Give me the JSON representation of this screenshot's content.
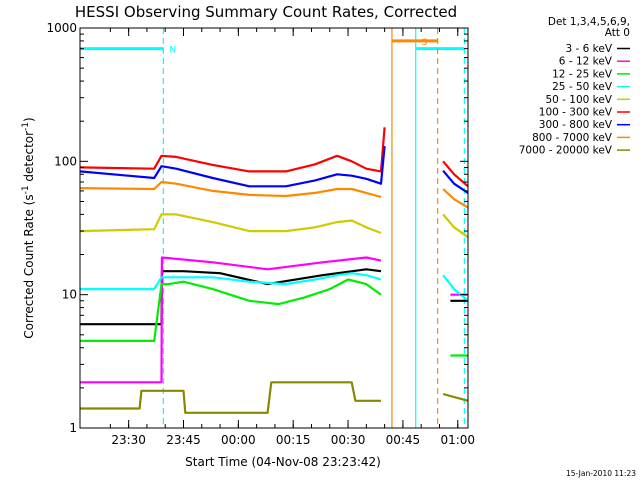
{
  "chart_data": {
    "type": "line",
    "title": "HESSI Observing Summary Count Rates, Corrected",
    "ylabel": "Corrected Count Rate (s",
    "ylabel_sup": "-1",
    "ylabel_tail": " detector",
    "ylabel_sup2": "-1",
    "ylabel_close": ")",
    "xlabel": "Start Time (04-Nov-08 23:23:42)",
    "yscale": "log",
    "ylim": [
      1,
      1000
    ],
    "xlim_minutes": [
      -6.3,
      99.8
    ],
    "x_reference_time": "23:23:42",
    "x_ticks": [
      {
        "t": 7,
        "label": "23:30"
      },
      {
        "t": 22,
        "label": "23:45"
      },
      {
        "t": 37,
        "label": "00:00"
      },
      {
        "t": 52,
        "label": "00:15"
      },
      {
        "t": 67,
        "label": "00:30"
      },
      {
        "t": 82,
        "label": "00:45"
      },
      {
        "t": 97,
        "label": "01:00"
      }
    ],
    "y_ticks": [
      {
        "v": 1,
        "label": "1"
      },
      {
        "v": 10,
        "label": "10"
      },
      {
        "v": 100,
        "label": "100"
      },
      {
        "v": 1000,
        "label": "1000"
      }
    ],
    "legend": {
      "header1": "Det 1,3,4,5,6,9,",
      "header2": "Att 0",
      "placement": "right"
    },
    "series": [
      {
        "name": "3 - 6 keV",
        "color": "#000000",
        "x": [
          -6.3,
          10,
          16,
          16.1,
          22,
          32,
          45,
          60,
          72,
          76,
          91,
          95,
          99.8
        ],
        "y": [
          6,
          6,
          6,
          15,
          15,
          14.5,
          12,
          14,
          15.5,
          15,
          null,
          9,
          9
        ]
      },
      {
        "name": "6 - 12 keV",
        "color": "#ff00ff",
        "x": [
          -6.3,
          16,
          16.1,
          30,
          45,
          60,
          72,
          76,
          91,
          95,
          99.8
        ],
        "y": [
          2.2,
          2.2,
          19,
          17.5,
          15.5,
          17.5,
          19,
          18,
          null,
          10,
          10
        ]
      },
      {
        "name": "12 - 25 keV",
        "color": "#00ee00",
        "x": [
          -6.3,
          14,
          16,
          18,
          22,
          30,
          40,
          48,
          55,
          62,
          67,
          72,
          76,
          91,
          95,
          99.8
        ],
        "y": [
          4.5,
          4.5,
          12,
          12,
          12.5,
          11,
          9,
          8.5,
          9.5,
          11,
          13,
          12,
          10,
          null,
          3.5,
          3.5
        ]
      },
      {
        "name": "25 - 50 keV",
        "color": "#00ffff",
        "x": [
          -6.3,
          14,
          16,
          20,
          30,
          40,
          50,
          58,
          64,
          68,
          72,
          76,
          91,
          93,
          96,
          99.8
        ],
        "y": [
          11,
          11,
          13.5,
          13.5,
          13.5,
          12.5,
          12,
          13,
          14,
          14.5,
          14,
          13,
          null,
          14,
          11,
          9
        ]
      },
      {
        "name": "50 - 100 keV",
        "color": "#cccc00",
        "x": [
          -6.3,
          14,
          16,
          20,
          30,
          40,
          50,
          58,
          64,
          68,
          72,
          76,
          91,
          93,
          96,
          99.8
        ],
        "y": [
          30,
          31,
          40,
          40,
          35,
          30,
          30,
          32,
          35,
          36,
          32,
          29,
          null,
          40,
          32,
          27
        ]
      },
      {
        "name": "100 - 300 keV",
        "color": "#ff0000",
        "x": [
          -6.3,
          14,
          16,
          20,
          30,
          40,
          50,
          58,
          64,
          68,
          72,
          76,
          77,
          91,
          93,
          96,
          99.8
        ],
        "y": [
          90,
          88,
          110,
          108,
          94,
          84,
          84,
          95,
          110,
          100,
          88,
          84,
          180,
          null,
          100,
          80,
          65
        ]
      },
      {
        "name": "300 - 800 keV",
        "color": "#0000ff",
        "x": [
          -6.3,
          14,
          16,
          20,
          30,
          40,
          50,
          58,
          64,
          68,
          72,
          76,
          77,
          91,
          93,
          96,
          99.8
        ],
        "y": [
          84,
          75,
          92,
          88,
          75,
          65,
          65,
          72,
          80,
          78,
          74,
          68,
          130,
          null,
          85,
          68,
          58
        ]
      },
      {
        "name": "800 - 7000 keV",
        "color": "#ff8800",
        "x": [
          -6.3,
          14,
          16,
          20,
          30,
          40,
          50,
          58,
          64,
          68,
          72,
          76,
          91,
          93,
          96,
          99.8
        ],
        "y": [
          63,
          62,
          70,
          68,
          60,
          56,
          55,
          58,
          62,
          62,
          58,
          54,
          null,
          62,
          52,
          45
        ]
      },
      {
        "name": "7000 - 20000 keV",
        "color": "#888800",
        "x": [
          -6.3,
          10,
          10.5,
          22,
          22.5,
          45,
          46,
          68,
          69,
          76,
          91,
          93,
          99.8
        ],
        "y": [
          1.4,
          1.4,
          1.9,
          1.9,
          1.3,
          1.3,
          2.2,
          2.2,
          1.6,
          1.6,
          null,
          1.8,
          1.6
        ]
      }
    ],
    "overlays": [
      {
        "kind": "bar",
        "label": "N",
        "color": "#00ffff",
        "t0": -6.3,
        "t1": 16.5,
        "level": 700
      },
      {
        "kind": "vline",
        "color": "#00ffff",
        "t": 16.5,
        "dashed": true
      },
      {
        "kind": "vline",
        "color": "#00ffff",
        "t": 85.5,
        "dashed": false
      },
      {
        "kind": "bar",
        "label": "",
        "color": "#00ffff",
        "t0": 85.5,
        "t1": 98.8,
        "level": 700
      },
      {
        "kind": "vline",
        "color": "#00ffff",
        "t": 98.8,
        "dashed": true
      },
      {
        "kind": "bar",
        "label": "S",
        "color": "#ff8800",
        "t0": 79,
        "t1": 91.5,
        "level": 800
      },
      {
        "kind": "vline",
        "color": "#ff8800",
        "t": 79,
        "dashed": false
      },
      {
        "kind": "vline",
        "color": "#ff8800",
        "t": 91.5,
        "dashed": true
      }
    ]
  },
  "timestamp": "15-Jan-2010 11:23"
}
